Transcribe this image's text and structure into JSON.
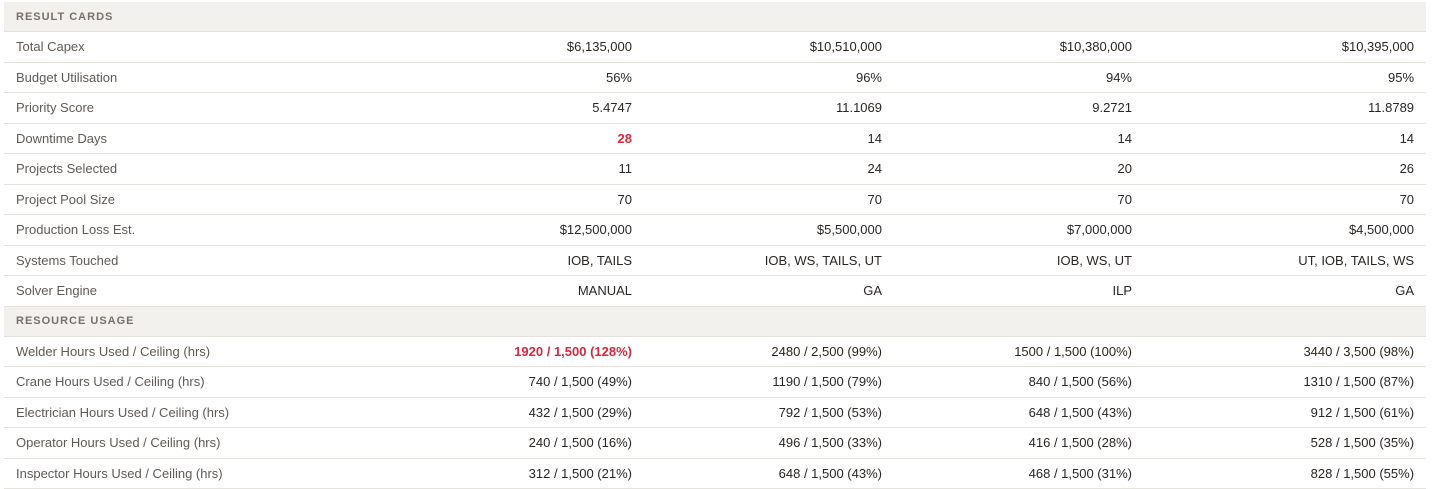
{
  "sections": [
    {
      "title": "RESULT CARDS",
      "rows": [
        {
          "label": "Total Capex",
          "values": [
            "$6,135,000",
            "$10,510,000",
            "$10,380,000",
            "$10,395,000"
          ],
          "alert": [
            false,
            false,
            false,
            false
          ]
        },
        {
          "label": "Budget Utilisation",
          "values": [
            "56%",
            "96%",
            "94%",
            "95%"
          ],
          "alert": [
            false,
            false,
            false,
            false
          ]
        },
        {
          "label": "Priority Score",
          "values": [
            "5.4747",
            "11.1069",
            "9.2721",
            "11.8789"
          ],
          "alert": [
            false,
            false,
            false,
            false
          ]
        },
        {
          "label": "Downtime Days",
          "values": [
            "28",
            "14",
            "14",
            "14"
          ],
          "alert": [
            true,
            false,
            false,
            false
          ]
        },
        {
          "label": "Projects Selected",
          "values": [
            "11",
            "24",
            "20",
            "26"
          ],
          "alert": [
            false,
            false,
            false,
            false
          ]
        },
        {
          "label": "Project Pool Size",
          "values": [
            "70",
            "70",
            "70",
            "70"
          ],
          "alert": [
            false,
            false,
            false,
            false
          ]
        },
        {
          "label": "Production Loss Est.",
          "values": [
            "$12,500,000",
            "$5,500,000",
            "$7,000,000",
            "$4,500,000"
          ],
          "alert": [
            false,
            false,
            false,
            false
          ]
        },
        {
          "label": "Systems Touched",
          "values": [
            "IOB, TAILS",
            "IOB, WS, TAILS, UT",
            "IOB, WS, UT",
            "UT, IOB, TAILS, WS"
          ],
          "alert": [
            false,
            false,
            false,
            false
          ]
        },
        {
          "label": "Solver Engine",
          "values": [
            "MANUAL",
            "GA",
            "ILP",
            "GA"
          ],
          "alert": [
            false,
            false,
            false,
            false
          ]
        }
      ]
    },
    {
      "title": "RESOURCE USAGE",
      "rows": [
        {
          "label": "Welder Hours Used / Ceiling (hrs)",
          "values": [
            "1920 / 1,500 (128%)",
            "2480 / 2,500 (99%)",
            "1500 / 1,500 (100%)",
            "3440 / 3,500 (98%)"
          ],
          "alert": [
            true,
            false,
            false,
            false
          ]
        },
        {
          "label": "Crane Hours Used / Ceiling (hrs)",
          "values": [
            "740 / 1,500 (49%)",
            "1190 / 1,500 (79%)",
            "840 / 1,500 (56%)",
            "1310 / 1,500 (87%)"
          ],
          "alert": [
            false,
            false,
            false,
            false
          ]
        },
        {
          "label": "Electrician Hours Used / Ceiling (hrs)",
          "values": [
            "432 / 1,500 (29%)",
            "792 / 1,500 (53%)",
            "648 / 1,500 (43%)",
            "912 / 1,500 (61%)"
          ],
          "alert": [
            false,
            false,
            false,
            false
          ]
        },
        {
          "label": "Operator Hours Used / Ceiling (hrs)",
          "values": [
            "240 / 1,500 (16%)",
            "496 / 1,500 (33%)",
            "416 / 1,500 (28%)",
            "528 / 1,500 (35%)"
          ],
          "alert": [
            false,
            false,
            false,
            false
          ]
        },
        {
          "label": "Inspector Hours Used / Ceiling (hrs)",
          "values": [
            "312 / 1,500 (21%)",
            "648 / 1,500 (43%)",
            "468 / 1,500 (31%)",
            "828 / 1,500 (55%)"
          ],
          "alert": [
            false,
            false,
            false,
            false
          ]
        }
      ]
    }
  ],
  "colors": {
    "alert": "#d9263d",
    "section_bg": "#f3f1ee",
    "label": "#5f5a55"
  }
}
